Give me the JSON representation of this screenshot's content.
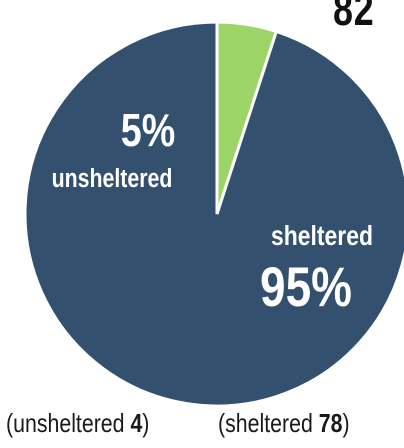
{
  "total_label": "82",
  "chart_data": {
    "type": "pie",
    "slices": [
      {
        "name": "unsheltered",
        "percent": 5,
        "count": 4,
        "color": "#9cd467"
      },
      {
        "name": "sheltered",
        "percent": 95,
        "count": 78,
        "color": "#33506f"
      }
    ],
    "labels": {
      "unsheltered_pct": "5%",
      "unsheltered_name": "unsheltered",
      "sheltered_name": "sheltered",
      "sheltered_pct": "95%"
    }
  },
  "footer": {
    "left_prefix": "(unsheltered ",
    "left_count": "4",
    "left_suffix": ")",
    "right_prefix": "(sheltered ",
    "right_count": "78",
    "right_suffix": ")"
  }
}
